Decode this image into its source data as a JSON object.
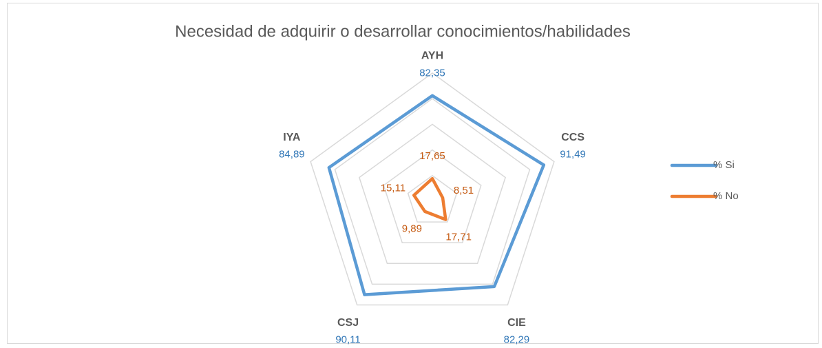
{
  "chart_data": {
    "type": "radar",
    "title": "Necesidad de adquirir o desarrollar conocimientos/habilidades",
    "categories": [
      "AYH",
      "CCS",
      "CIE",
      "CSJ",
      "IYA"
    ],
    "series": [
      {
        "name": "% Si",
        "color": "#5b9bd5",
        "values": [
          82.35,
          91.49,
          82.29,
          90.11,
          84.89
        ],
        "value_labels": [
          "82,35",
          "91,49",
          "82,29",
          "90,11",
          "84,89"
        ]
      },
      {
        "name": "% No",
        "color": "#ed7d31",
        "values": [
          17.65,
          8.51,
          17.71,
          9.89,
          15.11
        ],
        "value_labels": [
          "17,65",
          "8,51",
          "17,71",
          "9,89",
          "15,11"
        ]
      }
    ],
    "ylim": [
      0,
      100
    ],
    "yticks": [
      0,
      20,
      40,
      60,
      80,
      100
    ],
    "grid": true,
    "legend": "right"
  }
}
